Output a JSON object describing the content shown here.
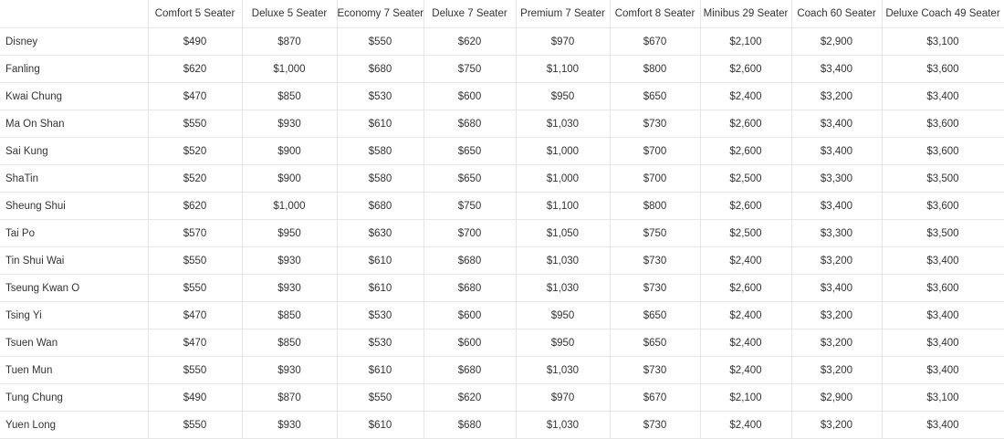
{
  "table": {
    "headers": [
      "",
      "Comfort 5 Seater",
      "Deluxe 5 Seater",
      "Economy 7 Seater",
      "Deluxe 7 Seater",
      "Premium 7 Seater",
      "Comfort 8 Seater",
      "Minibus 29 Seater",
      "Coach 60 Seater",
      "Deluxe Coach 49 Seater"
    ],
    "rows": [
      [
        "Disney",
        "$490",
        "$870",
        "$550",
        "$620",
        "$970",
        "$670",
        "$2,100",
        "$2,900",
        "$3,100"
      ],
      [
        "Fanling",
        "$620",
        "$1,000",
        "$680",
        "$750",
        "$1,100",
        "$800",
        "$2,600",
        "$3,400",
        "$3,600"
      ],
      [
        "Kwai Chung",
        "$470",
        "$850",
        "$530",
        "$600",
        "$950",
        "$650",
        "$2,400",
        "$3,200",
        "$3,400"
      ],
      [
        "Ma On Shan",
        "$550",
        "$930",
        "$610",
        "$680",
        "$1,030",
        "$730",
        "$2,600",
        "$3,400",
        "$3,600"
      ],
      [
        "Sai Kung",
        "$520",
        "$900",
        "$580",
        "$650",
        "$1,000",
        "$700",
        "$2,600",
        "$3,400",
        "$3,600"
      ],
      [
        "ShaTin",
        "$520",
        "$900",
        "$580",
        "$650",
        "$1,000",
        "$700",
        "$2,500",
        "$3,300",
        "$3,500"
      ],
      [
        "Sheung Shui",
        "$620",
        "$1,000",
        "$680",
        "$750",
        "$1,100",
        "$800",
        "$2,600",
        "$3,400",
        "$3,600"
      ],
      [
        "Tai Po",
        "$570",
        "$950",
        "$630",
        "$700",
        "$1,050",
        "$750",
        "$2,500",
        "$3,300",
        "$3,500"
      ],
      [
        "Tin Shui Wai",
        "$550",
        "$930",
        "$610",
        "$680",
        "$1,030",
        "$730",
        "$2,400",
        "$3,200",
        "$3,400"
      ],
      [
        "Tseung Kwan O",
        "$550",
        "$930",
        "$610",
        "$680",
        "$1,030",
        "$730",
        "$2,600",
        "$3,400",
        "$3,600"
      ],
      [
        "Tsing Yi",
        "$470",
        "$850",
        "$530",
        "$600",
        "$950",
        "$650",
        "$2,400",
        "$3,200",
        "$3,400"
      ],
      [
        "Tsuen Wan",
        "$470",
        "$850",
        "$530",
        "$600",
        "$950",
        "$650",
        "$2,400",
        "$3,200",
        "$3,400"
      ],
      [
        "Tuen Mun",
        "$550",
        "$930",
        "$610",
        "$680",
        "$1,030",
        "$730",
        "$2,400",
        "$3,200",
        "$3,400"
      ],
      [
        "Tung Chung",
        "$490",
        "$870",
        "$550",
        "$620",
        "$970",
        "$670",
        "$2,100",
        "$2,900",
        "$3,100"
      ],
      [
        "Yuen Long",
        "$550",
        "$930",
        "$610",
        "$680",
        "$1,030",
        "$730",
        "$2,400",
        "$3,200",
        "$3,400"
      ]
    ]
  }
}
